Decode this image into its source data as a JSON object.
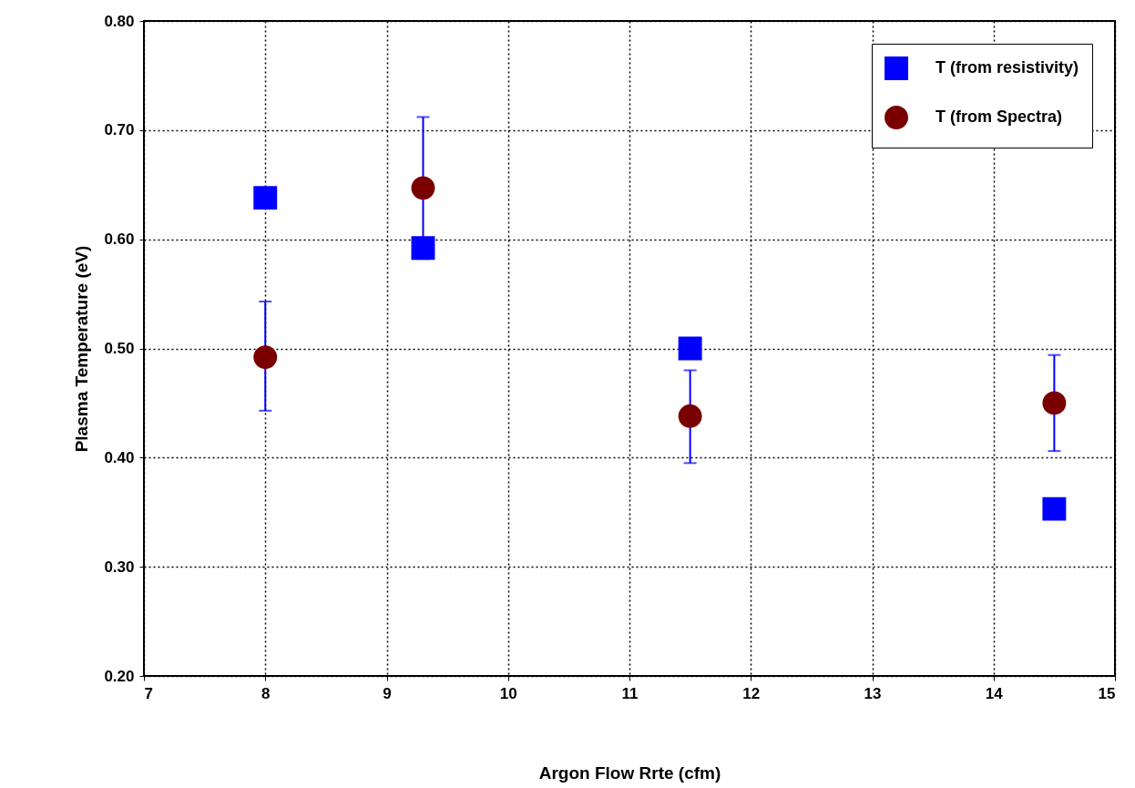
{
  "chart_data": {
    "type": "scatter",
    "xlabel": "Argon Flow Rrte (cfm)",
    "ylabel": "Plasma Temperature (eV)",
    "xlim": [
      7,
      15
    ],
    "xticks": [
      7,
      8,
      9,
      10,
      11,
      12,
      13,
      14,
      15
    ],
    "ylim": [
      0.2,
      0.8
    ],
    "yticks": [
      {
        "value": 0.2,
        "label": "0.20"
      },
      {
        "value": 0.3,
        "label": "0.30"
      },
      {
        "value": 0.4,
        "label": "0.40"
      },
      {
        "value": 0.5,
        "label": "0.50"
      },
      {
        "value": 0.6,
        "label": "0.60"
      },
      {
        "value": 0.7,
        "label": "0.70"
      },
      {
        "value": 0.8,
        "label": "0.80"
      }
    ],
    "grid": true,
    "legend": "top right",
    "series": [
      {
        "name": "T (from resistivity)",
        "color": "#0000ff",
        "marker": "square",
        "x": [
          8,
          9.3,
          11.5,
          14.5
        ],
        "values": [
          0.638,
          0.592,
          0.5,
          0.353
        ]
      },
      {
        "name": "T (from Spectra)",
        "color": "#7a0000",
        "marker": "circle",
        "x": [
          8,
          9.3,
          11.5,
          14.5
        ],
        "values": [
          0.492,
          0.647,
          0.438,
          0.45
        ],
        "errors": [
          [
            0.443,
            0.543
          ],
          [
            0.582,
            0.712
          ],
          [
            0.395,
            0.48
          ],
          [
            0.406,
            0.494
          ]
        ]
      }
    ]
  }
}
